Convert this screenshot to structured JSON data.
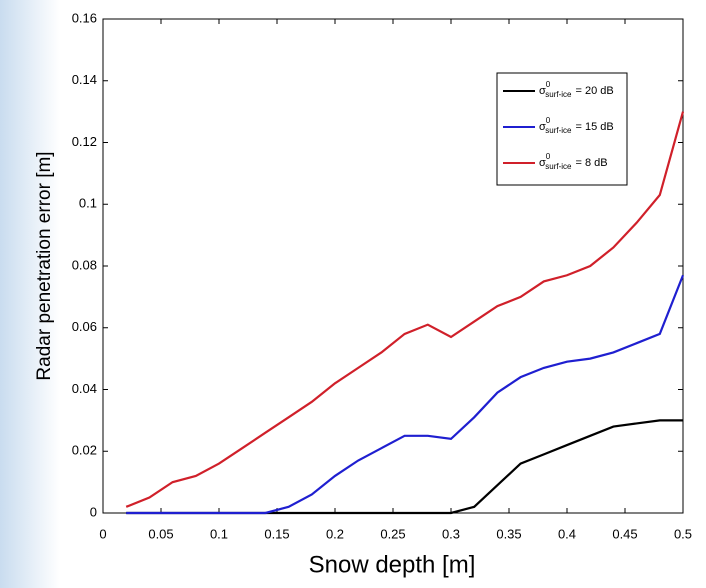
{
  "chart_data": {
    "type": "line",
    "xlabel": "Snow depth [m]",
    "ylabel": "Radar penetration error [m]",
    "x": [
      0.02,
      0.04,
      0.06,
      0.08,
      0.1,
      0.12,
      0.14,
      0.16,
      0.18,
      0.2,
      0.22,
      0.24,
      0.26,
      0.28,
      0.3,
      0.32,
      0.34,
      0.36,
      0.38,
      0.4,
      0.42,
      0.44,
      0.46,
      0.48,
      0.5
    ],
    "legend_label": {
      "symbol": "σ",
      "superscript": "0",
      "subscript": "surf-ice"
    },
    "series": [
      {
        "name": "= 20 dB",
        "color": "#000000",
        "values": [
          0,
          0,
          0,
          0,
          0,
          0,
          0,
          0,
          0,
          0,
          0,
          0,
          0,
          0,
          0,
          0.002,
          0.009,
          0.016,
          0.019,
          0.022,
          0.025,
          0.028,
          0.029,
          0.03,
          0.03
        ]
      },
      {
        "name": "= 15 dB",
        "color": "#1f1fd0",
        "values": [
          0,
          0,
          0,
          0,
          0,
          0,
          0,
          0.002,
          0.006,
          0.012,
          0.017,
          0.021,
          0.025,
          0.025,
          0.024,
          0.031,
          0.039,
          0.044,
          0.047,
          0.049,
          0.05,
          0.052,
          0.055,
          0.058,
          0.077
        ]
      },
      {
        "name": "= 8 dB",
        "color": "#d0202a",
        "values": [
          0.002,
          0.005,
          0.01,
          0.012,
          0.016,
          0.021,
          0.026,
          0.031,
          0.036,
          0.042,
          0.047,
          0.052,
          0.058,
          0.061,
          0.057,
          0.062,
          0.067,
          0.07,
          0.075,
          0.077,
          0.08,
          0.086,
          0.094,
          0.103,
          0.13
        ]
      }
    ],
    "xlim": [
      0,
      0.5
    ],
    "xticks": [
      0,
      0.05,
      0.1,
      0.15,
      0.2,
      0.25,
      0.3,
      0.35,
      0.4,
      0.45,
      0.5
    ],
    "ylim": [
      0,
      0.16
    ],
    "yticks": [
      0,
      0.02,
      0.04,
      0.06,
      0.08,
      0.1,
      0.12,
      0.14,
      0.16
    ],
    "grid": false,
    "legend": "upper right"
  }
}
